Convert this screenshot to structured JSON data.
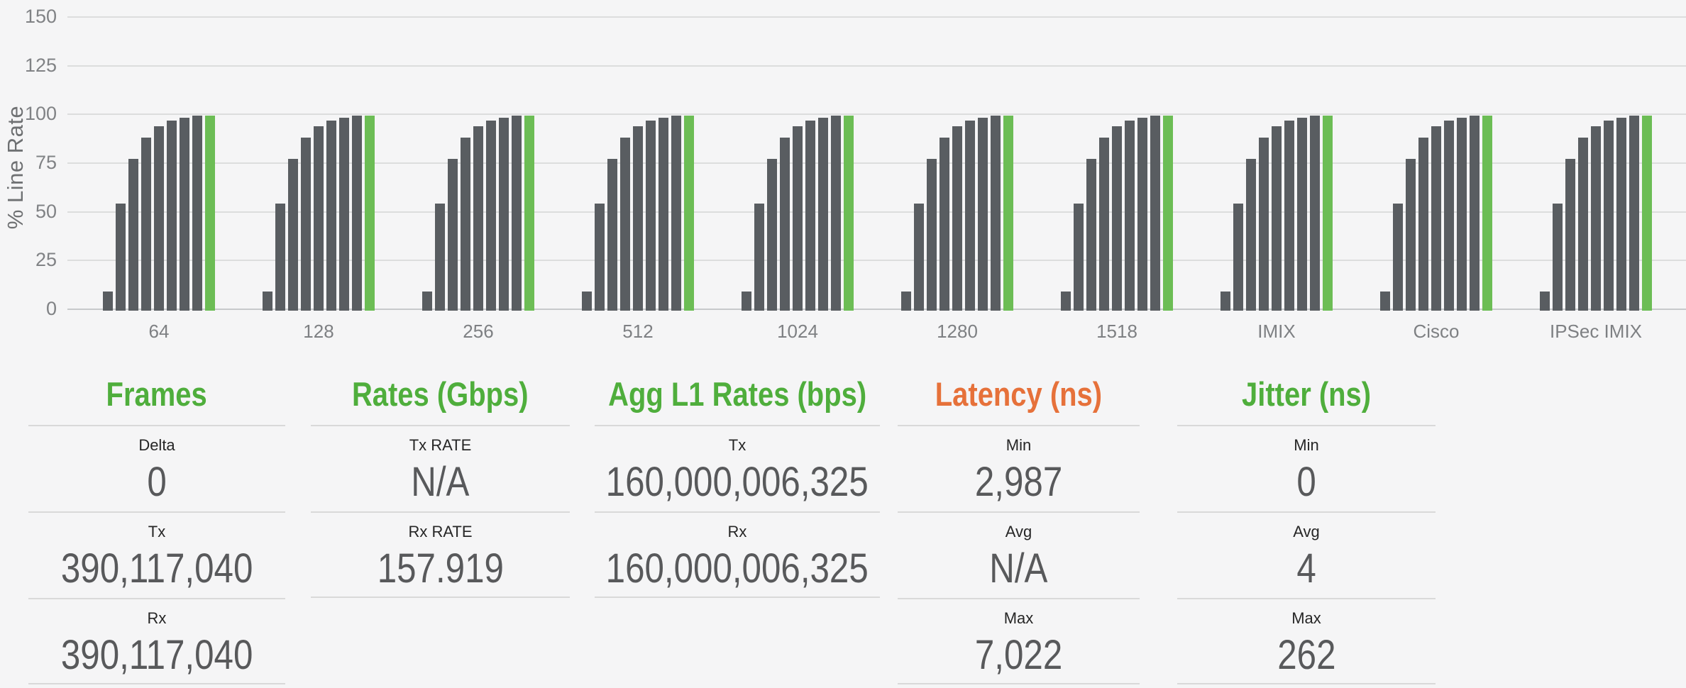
{
  "chart": {
    "ylabel": "% Line Rate"
  },
  "chart_data": {
    "type": "bar",
    "title": "",
    "xlabel": "",
    "ylabel": "% Line Rate",
    "ylim": [
      0,
      150
    ],
    "y_ticks": [
      0,
      25,
      50,
      75,
      100,
      125,
      150
    ],
    "grid": true,
    "legend": "none",
    "categories": [
      "64",
      "128",
      "256",
      "512",
      "1024",
      "1280",
      "1518",
      "IMIX",
      "Cisco",
      "IPSec IMIX"
    ],
    "note": "Every category shows the same ramp of 8 gray bars followed by one green target bar at 100% line rate",
    "series": [
      {
        "name": "ramp-bars",
        "color": "#595d61",
        "values": [
          10,
          55,
          78,
          89,
          94.5,
          97.5,
          99,
          100
        ]
      },
      {
        "name": "target-bar",
        "color": "#6cbd55",
        "values": [
          100
        ]
      }
    ]
  },
  "stats": {
    "columns": [
      {
        "title": "Frames",
        "color": "#4fae3c",
        "cells": [
          {
            "label": "Delta",
            "value": "0"
          },
          {
            "label": "Tx",
            "value": "390,117,040"
          },
          {
            "label": "Rx",
            "value": "390,117,040"
          }
        ]
      },
      {
        "title": "Rates (Gbps)",
        "color": "#4fae3c",
        "cells": [
          {
            "label": "Tx RATE",
            "value": "N/A"
          },
          {
            "label": "Rx RATE",
            "value": "157.919"
          }
        ]
      },
      {
        "title": "Agg L1 Rates (bps)",
        "color": "#4fae3c",
        "cells": [
          {
            "label": "Tx",
            "value": "160,000,006,325"
          },
          {
            "label": "Rx",
            "value": "160,000,006,325"
          }
        ]
      },
      {
        "title": "Latency (ns)",
        "color": "#e6713a",
        "cells": [
          {
            "label": "Min",
            "value": "2,987"
          },
          {
            "label": "Avg",
            "value": "N/A"
          },
          {
            "label": "Max",
            "value": "7,022"
          }
        ]
      },
      {
        "title": "Jitter (ns)",
        "color": "#4fae3c",
        "cells": [
          {
            "label": "Min",
            "value": "0"
          },
          {
            "label": "Avg",
            "value": "4"
          },
          {
            "label": "Max",
            "value": "262"
          }
        ]
      }
    ]
  }
}
